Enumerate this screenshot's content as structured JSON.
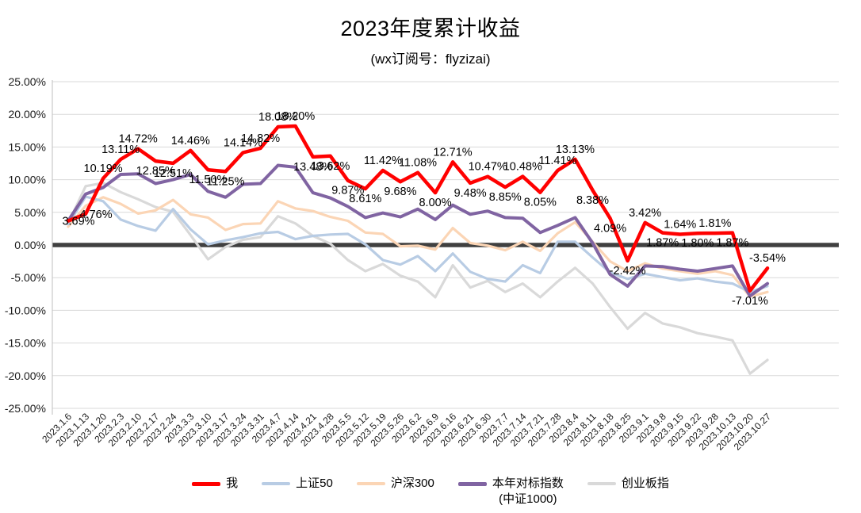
{
  "header": {
    "title": "2023年度累计收益",
    "subtitle": "(wx订阅号：flyzizai)"
  },
  "chart_data": {
    "type": "line",
    "title": "2023年度累计收益",
    "subtitle": "(wx订阅号：flyzizai)",
    "grid": true,
    "legend_position": "bottom",
    "ylim": [
      -25,
      25
    ],
    "ytick_step": 5,
    "ytick_format": "0.00%",
    "axis_text_color": "#1a1a1a",
    "grid_color": "#d9d9d9",
    "axis_line_color": "#bfbfbf",
    "zero_line_color": "#404040",
    "categories": [
      "2023.1.6",
      "2023.1.13",
      "2023.1.20",
      "2023.2.3",
      "2023.2.10",
      "2023.2.17",
      "2023.2.24",
      "2023.3.3",
      "2023.3.10",
      "2023.3.17",
      "2023.3.24",
      "2023.3.31",
      "2023.4.7",
      "2023.4.14",
      "2023.4.21",
      "2023.4.28",
      "2023.5.5",
      "2023.5.12",
      "2023.5.19",
      "2023.5.26",
      "2023.6.2",
      "2023.6.9",
      "2023.6.16",
      "2023.6.21",
      "2023.6.30",
      "2023.7.7",
      "2023.7.14",
      "2023.7.21",
      "2023.7.28",
      "2023.8.4",
      "2023.8.11",
      "2023.8.18",
      "2023.8.25",
      "2023.9.1",
      "2023.9.8",
      "2023.9.15",
      "2023.9.22",
      "2023.9.28",
      "2023.10.13",
      "2023.10.20",
      "2023.10.27"
    ],
    "series": [
      {
        "key": "me",
        "name": "我",
        "color": "#ff0000",
        "width": 4.5,
        "values": [
          3.69,
          4.76,
          10.19,
          13.11,
          14.72,
          12.85,
          12.51,
          14.46,
          11.5,
          11.25,
          14.14,
          14.82,
          18.08,
          18.2,
          13.48,
          13.62,
          9.87,
          8.61,
          11.42,
          9.68,
          11.08,
          8.0,
          12.71,
          9.48,
          10.47,
          8.85,
          10.48,
          8.05,
          11.41,
          13.13,
          8.38,
          4.09,
          -2.42,
          3.42,
          1.87,
          1.64,
          1.8,
          1.81,
          1.87,
          -7.01,
          -3.54
        ],
        "labels": [
          "3.69%",
          "4.76%",
          "10.19%",
          "13.11%",
          "14.72%",
          "12.85%",
          "12.51%",
          "14.46%",
          "11.50%",
          "11.25%",
          "14.14%",
          "14.82%",
          "18.08%",
          "18.20%",
          "13.48%",
          "13.62%",
          "9.87%",
          "8.61%",
          "11.42%",
          "9.68%",
          "11.08%",
          "8.00%",
          "12.71%",
          "9.48%",
          "10.47%",
          "8.85%",
          "10.48%",
          "8.05%",
          "11.41%",
          "13.13%",
          "8.38%",
          "4.09%",
          "-2.42%",
          "3.42%",
          "1.87%",
          "1.64%",
          "1.80%",
          "1.81%",
          "1.87%",
          "-7.01%",
          "-3.54%"
        ],
        "label_pos": [
          "c",
          "c",
          "a",
          "a",
          "a",
          "b",
          "b",
          "a",
          "b",
          "b",
          "a",
          "a",
          "a",
          "a",
          "b",
          "b",
          "b",
          "b",
          "a",
          "b",
          "a",
          "b",
          "a",
          "b",
          "a",
          "b",
          "a",
          "b",
          "a",
          "a",
          "b",
          "b",
          "b",
          "a",
          "b",
          "a",
          "b",
          "a",
          "b",
          "b",
          "a"
        ]
      },
      {
        "key": "sse50",
        "name": "上证50",
        "color": "#b8cce4",
        "width": 3.2,
        "values": [
          3.2,
          7.4,
          6.7,
          3.9,
          2.9,
          2.2,
          5.5,
          2.4,
          0.1,
          0.7,
          1.2,
          1.8,
          2.0,
          0.9,
          1.4,
          1.6,
          1.7,
          0.1,
          -2.3,
          -3.0,
          -1.7,
          -4.0,
          -1.3,
          -4.1,
          -5.2,
          -5.6,
          -3.1,
          -4.3,
          0.5,
          0.5,
          -1.9,
          -4.2,
          -5.2,
          -4.4,
          -4.9,
          -5.4,
          -5.1,
          -5.6,
          -5.9,
          -7.2,
          -6.3
        ]
      },
      {
        "key": "hs300",
        "name": "沪深300",
        "color": "#fbd5b5",
        "width": 3.2,
        "values": [
          2.8,
          6.0,
          7.3,
          6.3,
          4.8,
          5.3,
          6.9,
          4.7,
          4.2,
          2.3,
          3.2,
          3.3,
          6.7,
          5.6,
          5.2,
          4.3,
          3.7,
          1.9,
          1.7,
          -0.2,
          -0.1,
          -0.7,
          2.6,
          0.3,
          -0.1,
          -0.8,
          0.5,
          -0.9,
          1.8,
          3.5,
          0.5,
          -2.5,
          -4.0,
          -2.8,
          -3.6,
          -4.0,
          -4.4,
          -4.0,
          -4.6,
          -7.9,
          -7.2
        ]
      },
      {
        "key": "benchmark",
        "name": "本年对标指数",
        "name2": "(中证1000)",
        "color": "#8064a2",
        "width": 4,
        "values": [
          3.7,
          7.8,
          8.8,
          10.8,
          10.9,
          9.4,
          10.0,
          10.8,
          8.2,
          7.3,
          9.3,
          9.4,
          12.2,
          11.9,
          8.0,
          7.2,
          5.9,
          4.2,
          4.9,
          4.3,
          5.5,
          3.9,
          6.1,
          4.7,
          5.2,
          4.2,
          4.1,
          1.9,
          3.0,
          4.2,
          0.3,
          -4.5,
          -6.3,
          -3.2,
          -3.3,
          -3.7,
          -4.0,
          -3.6,
          -3.2,
          -7.8,
          -5.9
        ]
      },
      {
        "key": "chinext",
        "name": "创业板指",
        "color": "#d9d9d9",
        "width": 3.2,
        "values": [
          3.3,
          9.0,
          9.5,
          8.1,
          7.0,
          5.8,
          5.1,
          1.5,
          -2.2,
          -0.3,
          0.8,
          1.2,
          4.4,
          3.3,
          1.4,
          0.2,
          -2.3,
          -4.0,
          -2.9,
          -4.7,
          -5.6,
          -8.0,
          -3.1,
          -6.5,
          -5.5,
          -7.2,
          -5.9,
          -8.0,
          -5.6,
          -3.5,
          -5.9,
          -9.5,
          -12.8,
          -10.4,
          -12.0,
          -12.6,
          -13.5,
          -14.0,
          -14.6,
          -19.7,
          -17.6
        ]
      }
    ]
  }
}
